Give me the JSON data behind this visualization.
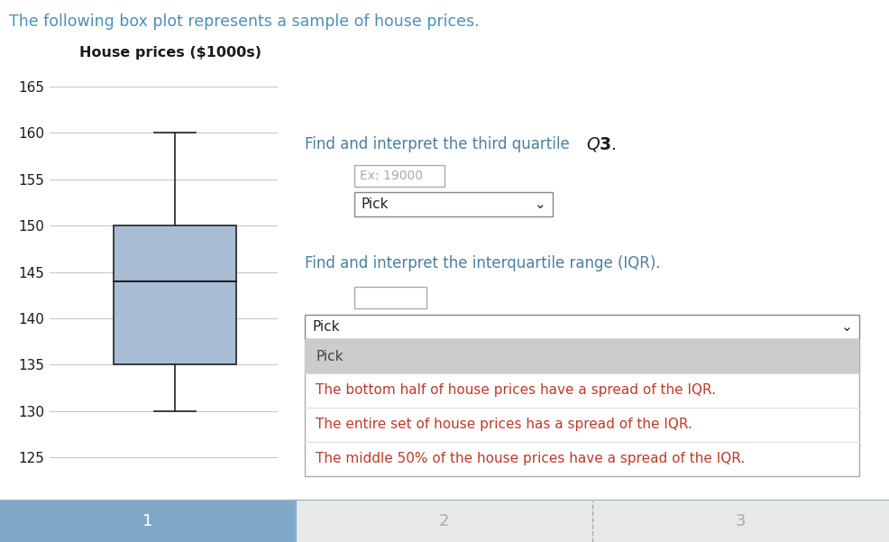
{
  "title_text": "The following box plot represents a sample of house prices.",
  "title_color": "#4a90b8",
  "box_title": "House prices ($1000s)",
  "box_title_color": "#1a1a1a",
  "q1": 135,
  "median": 144,
  "q3": 150,
  "whisker_low": 130,
  "whisker_high": 160,
  "ylim_min": 123,
  "ylim_max": 167,
  "yticks": [
    125,
    130,
    135,
    140,
    145,
    150,
    155,
    160,
    165
  ],
  "box_color": "#a8bdd4",
  "box_edge_color": "#222222",
  "median_color": "#222222",
  "whisker_color": "#222222",
  "grid_color": "#c8c8c8",
  "bg_color": "#ffffff",
  "q3_label_normal_color": "#4a7fa0",
  "iqr_color": "#4a7fa0",
  "iqr_question": "Find and interpret the interquartile range (IQR).",
  "dropdown_options": [
    "Pick",
    "The bottom half of house prices have a spread of the IQR.",
    "The entire set of house prices has a spread of the IQR.",
    "The middle 50% of the house prices have a spread of the IQR."
  ],
  "option_colors": [
    "#444444",
    "#c0392b",
    "#c0392b",
    "#c0392b"
  ],
  "nav1_color": "#7fa8c8",
  "nav1_text_color": "#ffffff",
  "nav23_color": "#e8e8e8",
  "nav23_text_color": "#aaaaaa"
}
